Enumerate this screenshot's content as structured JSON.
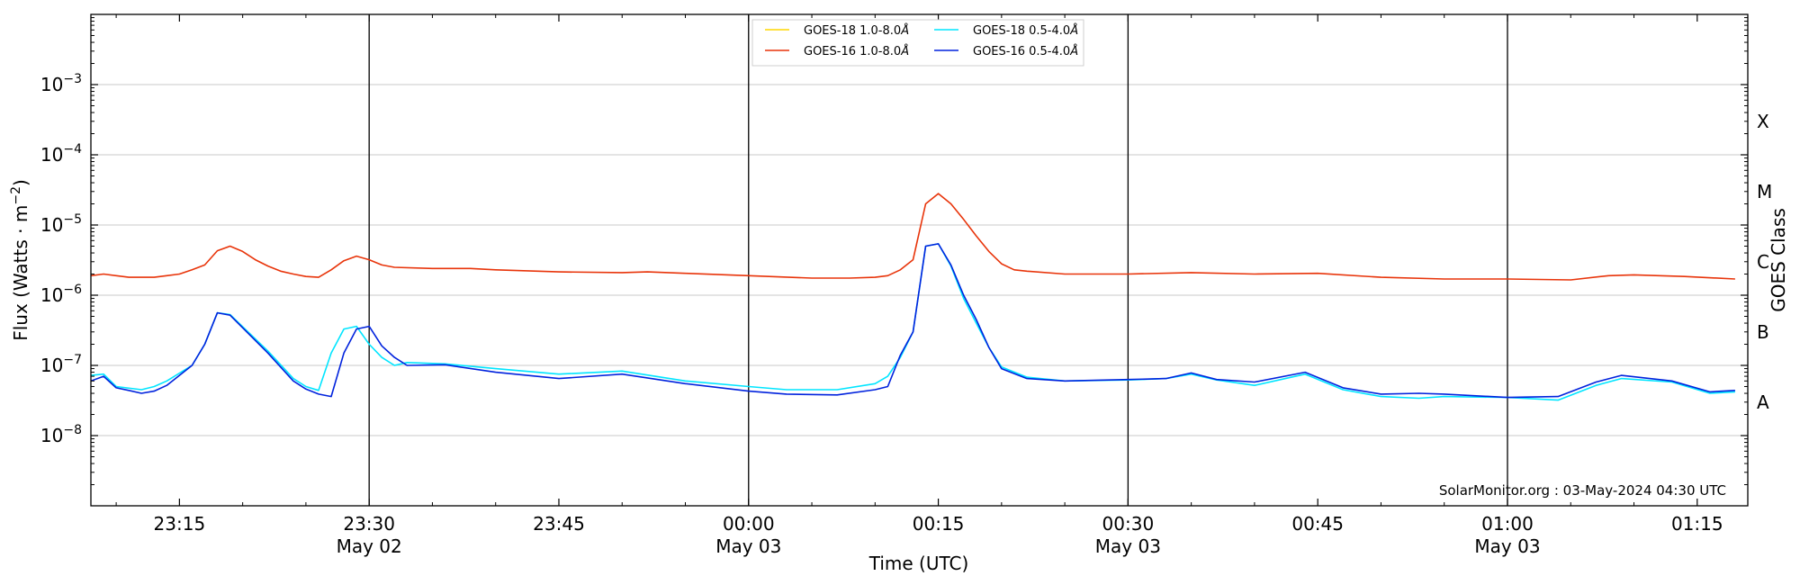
{
  "chart_data": {
    "type": "line",
    "xlabel": "Time (UTC)",
    "ylabel": "Flux (Watts · m",
    "ylabel_exp": "−2",
    "ylabel_close": ")",
    "right_label": "GOES Class",
    "yscale": "log",
    "ylim": [
      1e-09,
      0.01
    ],
    "y_ticks": [
      {
        "value": 1e-08,
        "base": "10",
        "exp": "−8"
      },
      {
        "value": 1e-07,
        "base": "10",
        "exp": "−7"
      },
      {
        "value": 1e-06,
        "base": "10",
        "exp": "−6"
      },
      {
        "value": 1e-05,
        "base": "10",
        "exp": "−5"
      },
      {
        "value": 0.0001,
        "base": "10",
        "exp": "−4"
      },
      {
        "value": 0.001,
        "base": "10",
        "exp": "−3"
      }
    ],
    "xlim": [
      "2024-05-02T23:08:00Z",
      "2024-05-03T01:19:00Z"
    ],
    "x_ticks": [
      {
        "time": "2024-05-02T23:15:00Z",
        "label": "23:15",
        "sublabel": ""
      },
      {
        "time": "2024-05-02T23:30:00Z",
        "label": "23:30",
        "sublabel": "May 02"
      },
      {
        "time": "2024-05-02T23:45:00Z",
        "label": "23:45",
        "sublabel": ""
      },
      {
        "time": "2024-05-03T00:00:00Z",
        "label": "00:00",
        "sublabel": "May 03"
      },
      {
        "time": "2024-05-03T00:15:00Z",
        "label": "00:15",
        "sublabel": ""
      },
      {
        "time": "2024-05-03T00:30:00Z",
        "label": "00:30",
        "sublabel": "May 03"
      },
      {
        "time": "2024-05-03T00:45:00Z",
        "label": "00:45",
        "sublabel": ""
      },
      {
        "time": "2024-05-03T01:00:00Z",
        "label": "01:00",
        "sublabel": "May 03"
      },
      {
        "time": "2024-05-03T01:15:00Z",
        "label": "01:15",
        "sublabel": ""
      }
    ],
    "vertical_lines": [
      "2024-05-02T23:30:00Z",
      "2024-05-03T00:00:00Z",
      "2024-05-03T00:30:00Z",
      "2024-05-03T01:00:00Z"
    ],
    "goes_classes": [
      {
        "label": "A",
        "value": 3e-08
      },
      {
        "label": "B",
        "value": 3e-07
      },
      {
        "label": "C",
        "value": 3e-06
      },
      {
        "label": "M",
        "value": 3e-05
      },
      {
        "label": "X",
        "value": 0.0003
      }
    ],
    "grid": true,
    "legend_position": "top-center",
    "credit": "SolarMonitor.org : 03-May-2024 04:30 UTC",
    "series": [
      {
        "name": "GOES-18 1.0-8.0",
        "unit_symbol": "Å",
        "color": "#ffd700",
        "x": [],
        "y": []
      },
      {
        "name": "GOES-16 1.0-8.0",
        "unit_symbol": "Å",
        "color": "#e8340a",
        "x": [
          "2024-05-02T23:08:00Z",
          "2024-05-02T23:09:00Z",
          "2024-05-02T23:10:00Z",
          "2024-05-02T23:11:00Z",
          "2024-05-02T23:12:00Z",
          "2024-05-02T23:13:00Z",
          "2024-05-02T23:14:00Z",
          "2024-05-02T23:15:00Z",
          "2024-05-02T23:16:00Z",
          "2024-05-02T23:17:00Z",
          "2024-05-02T23:18:00Z",
          "2024-05-02T23:19:00Z",
          "2024-05-02T23:20:00Z",
          "2024-05-02T23:21:00Z",
          "2024-05-02T23:22:00Z",
          "2024-05-02T23:23:00Z",
          "2024-05-02T23:24:00Z",
          "2024-05-02T23:25:00Z",
          "2024-05-02T23:26:00Z",
          "2024-05-02T23:27:00Z",
          "2024-05-02T23:28:00Z",
          "2024-05-02T23:29:00Z",
          "2024-05-02T23:30:00Z",
          "2024-05-02T23:31:00Z",
          "2024-05-02T23:32:00Z",
          "2024-05-02T23:35:00Z",
          "2024-05-02T23:38:00Z",
          "2024-05-02T23:40:00Z",
          "2024-05-02T23:45:00Z",
          "2024-05-02T23:50:00Z",
          "2024-05-02T23:52:00Z",
          "2024-05-02T23:55:00Z",
          "2024-05-03T00:00:00Z",
          "2024-05-03T00:05:00Z",
          "2024-05-03T00:08:00Z",
          "2024-05-03T00:10:00Z",
          "2024-05-03T00:11:00Z",
          "2024-05-03T00:12:00Z",
          "2024-05-03T00:13:00Z",
          "2024-05-03T00:14:00Z",
          "2024-05-03T00:15:00Z",
          "2024-05-03T00:16:00Z",
          "2024-05-03T00:17:00Z",
          "2024-05-03T00:18:00Z",
          "2024-05-03T00:19:00Z",
          "2024-05-03T00:20:00Z",
          "2024-05-03T00:21:00Z",
          "2024-05-03T00:22:00Z",
          "2024-05-03T00:25:00Z",
          "2024-05-03T00:30:00Z",
          "2024-05-03T00:35:00Z",
          "2024-05-03T00:40:00Z",
          "2024-05-03T00:45:00Z",
          "2024-05-03T00:50:00Z",
          "2024-05-03T00:55:00Z",
          "2024-05-03T01:00:00Z",
          "2024-05-03T01:05:00Z",
          "2024-05-03T01:08:00Z",
          "2024-05-03T01:10:00Z",
          "2024-05-03T01:14:00Z",
          "2024-05-03T01:18:00Z"
        ],
        "y": [
          1.9e-06,
          2e-06,
          1.9e-06,
          1.8e-06,
          1.8e-06,
          1.8e-06,
          1.9e-06,
          2e-06,
          2.3e-06,
          2.7e-06,
          4.3e-06,
          5e-06,
          4.2e-06,
          3.2e-06,
          2.6e-06,
          2.2e-06,
          2e-06,
          1.85e-06,
          1.8e-06,
          2.3e-06,
          3.1e-06,
          3.6e-06,
          3.2e-06,
          2.7e-06,
          2.5e-06,
          2.4e-06,
          2.4e-06,
          2.3e-06,
          2.15e-06,
          2.1e-06,
          2.15e-06,
          2.05e-06,
          1.9e-06,
          1.75e-06,
          1.75e-06,
          1.8e-06,
          1.9e-06,
          2.3e-06,
          3.2e-06,
          2e-05,
          2.8e-05,
          2e-05,
          1.2e-05,
          7e-06,
          4.2e-06,
          2.8e-06,
          2.3e-06,
          2.2e-06,
          2e-06,
          2e-06,
          2.1e-06,
          2e-06,
          2.05e-06,
          1.8e-06,
          1.7e-06,
          1.7e-06,
          1.65e-06,
          1.9e-06,
          1.95e-06,
          1.85e-06,
          1.7e-06
        ]
      },
      {
        "name": "GOES-18 0.5-4.0",
        "unit_symbol": "Å",
        "color": "#00e5ff",
        "x": [
          "2024-05-02T23:08:00Z",
          "2024-05-02T23:09:00Z",
          "2024-05-02T23:10:00Z",
          "2024-05-02T23:12:00Z",
          "2024-05-02T23:13:00Z",
          "2024-05-02T23:14:00Z",
          "2024-05-02T23:16:00Z",
          "2024-05-02T23:17:00Z",
          "2024-05-02T23:18:00Z",
          "2024-05-02T23:19:00Z",
          "2024-05-02T23:22:00Z",
          "2024-05-02T23:24:00Z",
          "2024-05-02T23:25:00Z",
          "2024-05-02T23:26:00Z",
          "2024-05-02T23:27:00Z",
          "2024-05-02T23:28:00Z",
          "2024-05-02T23:29:00Z",
          "2024-05-02T23:30:00Z",
          "2024-05-02T23:31:00Z",
          "2024-05-02T23:32:00Z",
          "2024-05-02T23:33:00Z",
          "2024-05-02T23:36:00Z",
          "2024-05-02T23:40:00Z",
          "2024-05-02T23:45:00Z",
          "2024-05-02T23:50:00Z",
          "2024-05-02T23:55:00Z",
          "2024-05-03T00:00:00Z",
          "2024-05-03T00:03:00Z",
          "2024-05-03T00:07:00Z",
          "2024-05-03T00:10:00Z",
          "2024-05-03T00:11:00Z",
          "2024-05-03T00:12:00Z",
          "2024-05-03T00:13:00Z",
          "2024-05-03T00:14:00Z",
          "2024-05-03T00:15:00Z",
          "2024-05-03T00:16:00Z",
          "2024-05-03T00:17:00Z",
          "2024-05-03T00:18:00Z",
          "2024-05-03T00:19:00Z",
          "2024-05-03T00:20:00Z",
          "2024-05-03T00:22:00Z",
          "2024-05-03T00:25:00Z",
          "2024-05-03T00:30:00Z",
          "2024-05-03T00:33:00Z",
          "2024-05-03T00:35:00Z",
          "2024-05-03T00:37:00Z",
          "2024-05-03T00:40:00Z",
          "2024-05-03T00:44:00Z",
          "2024-05-03T00:47:00Z",
          "2024-05-03T00:50:00Z",
          "2024-05-03T00:53:00Z",
          "2024-05-03T00:55:00Z",
          "2024-05-03T01:00:00Z",
          "2024-05-03T01:04:00Z",
          "2024-05-03T01:07:00Z",
          "2024-05-03T01:09:00Z",
          "2024-05-03T01:13:00Z",
          "2024-05-03T01:16:00Z",
          "2024-05-03T01:18:00Z"
        ],
        "y": [
          7.2e-08,
          7.5e-08,
          5e-08,
          4.5e-08,
          5e-08,
          6e-08,
          1e-07,
          2e-07,
          5.6e-07,
          5.3e-07,
          1.6e-07,
          6.5e-08,
          5e-08,
          4.4e-08,
          1.5e-07,
          3.3e-07,
          3.6e-07,
          2e-07,
          1.3e-07,
          1e-07,
          1.1e-07,
          1.05e-07,
          9e-08,
          7.5e-08,
          8.3e-08,
          6e-08,
          5e-08,
          4.5e-08,
          4.5e-08,
          5.5e-08,
          7e-08,
          1.3e-07,
          3e-07,
          5e-06,
          5.4e-06,
          2.6e-06,
          9e-07,
          4e-07,
          1.8e-07,
          9.5e-08,
          6.8e-08,
          6e-08,
          6.2e-08,
          6.5e-08,
          7.5e-08,
          6.2e-08,
          5.2e-08,
          7.5e-08,
          4.5e-08,
          3.6e-08,
          3.4e-08,
          3.6e-08,
          3.5e-08,
          3.2e-08,
          5.2e-08,
          6.5e-08,
          5.8e-08,
          4e-08,
          4.2e-08
        ]
      },
      {
        "name": "GOES-16 0.5-4.0",
        "unit_symbol": "Å",
        "color": "#0022dd",
        "x": [
          "2024-05-02T23:08:00Z",
          "2024-05-02T23:09:00Z",
          "2024-05-02T23:10:00Z",
          "2024-05-02T23:11:00Z",
          "2024-05-02T23:12:00Z",
          "2024-05-02T23:13:00Z",
          "2024-05-02T23:14:00Z",
          "2024-05-02T23:16:00Z",
          "2024-05-02T23:17:00Z",
          "2024-05-02T23:18:00Z",
          "2024-05-02T23:19:00Z",
          "2024-05-02T23:22:00Z",
          "2024-05-02T23:24:00Z",
          "2024-05-02T23:25:00Z",
          "2024-05-02T23:26:00Z",
          "2024-05-02T23:27:00Z",
          "2024-05-02T23:28:00Z",
          "2024-05-02T23:29:00Z",
          "2024-05-02T23:30:00Z",
          "2024-05-02T23:31:00Z",
          "2024-05-02T23:32:00Z",
          "2024-05-02T23:33:00Z",
          "2024-05-02T23:36:00Z",
          "2024-05-02T23:40:00Z",
          "2024-05-02T23:45:00Z",
          "2024-05-02T23:50:00Z",
          "2024-05-02T23:55:00Z",
          "2024-05-03T00:00:00Z",
          "2024-05-03T00:03:00Z",
          "2024-05-03T00:07:00Z",
          "2024-05-03T00:10:00Z",
          "2024-05-03T00:11:00Z",
          "2024-05-03T00:12:00Z",
          "2024-05-03T00:13:00Z",
          "2024-05-03T00:14:00Z",
          "2024-05-03T00:15:00Z",
          "2024-05-03T00:16:00Z",
          "2024-05-03T00:17:00Z",
          "2024-05-03T00:18:00Z",
          "2024-05-03T00:19:00Z",
          "2024-05-03T00:20:00Z",
          "2024-05-03T00:22:00Z",
          "2024-05-03T00:25:00Z",
          "2024-05-03T00:30:00Z",
          "2024-05-03T00:33:00Z",
          "2024-05-03T00:35:00Z",
          "2024-05-03T00:37:00Z",
          "2024-05-03T00:40:00Z",
          "2024-05-03T00:44:00Z",
          "2024-05-03T00:47:00Z",
          "2024-05-03T00:50:00Z",
          "2024-05-03T00:53:00Z",
          "2024-05-03T00:55:00Z",
          "2024-05-03T01:00:00Z",
          "2024-05-03T01:04:00Z",
          "2024-05-03T01:07:00Z",
          "2024-05-03T01:09:00Z",
          "2024-05-03T01:13:00Z",
          "2024-05-03T01:16:00Z",
          "2024-05-03T01:18:00Z"
        ],
        "y": [
          6e-08,
          7e-08,
          4.8e-08,
          4.4e-08,
          4e-08,
          4.3e-08,
          5.2e-08,
          1e-07,
          2e-07,
          5.6e-07,
          5.2e-07,
          1.5e-07,
          6e-08,
          4.6e-08,
          3.9e-08,
          3.6e-08,
          1.5e-07,
          3.3e-07,
          3.6e-07,
          1.9e-07,
          1.3e-07,
          1e-07,
          1.02e-07,
          8e-08,
          6.5e-08,
          7.5e-08,
          5.5e-08,
          4.3e-08,
          3.9e-08,
          3.8e-08,
          4.5e-08,
          5e-08,
          1.4e-07,
          3e-07,
          5e-06,
          5.4e-06,
          2.7e-06,
          1e-06,
          4.5e-07,
          1.8e-07,
          9e-08,
          6.5e-08,
          6e-08,
          6.3e-08,
          6.5e-08,
          7.8e-08,
          6.3e-08,
          5.8e-08,
          8e-08,
          4.8e-08,
          3.9e-08,
          4e-08,
          3.9e-08,
          3.5e-08,
          3.6e-08,
          5.8e-08,
          7.2e-08,
          6e-08,
          4.2e-08,
          4.4e-08
        ]
      }
    ]
  }
}
